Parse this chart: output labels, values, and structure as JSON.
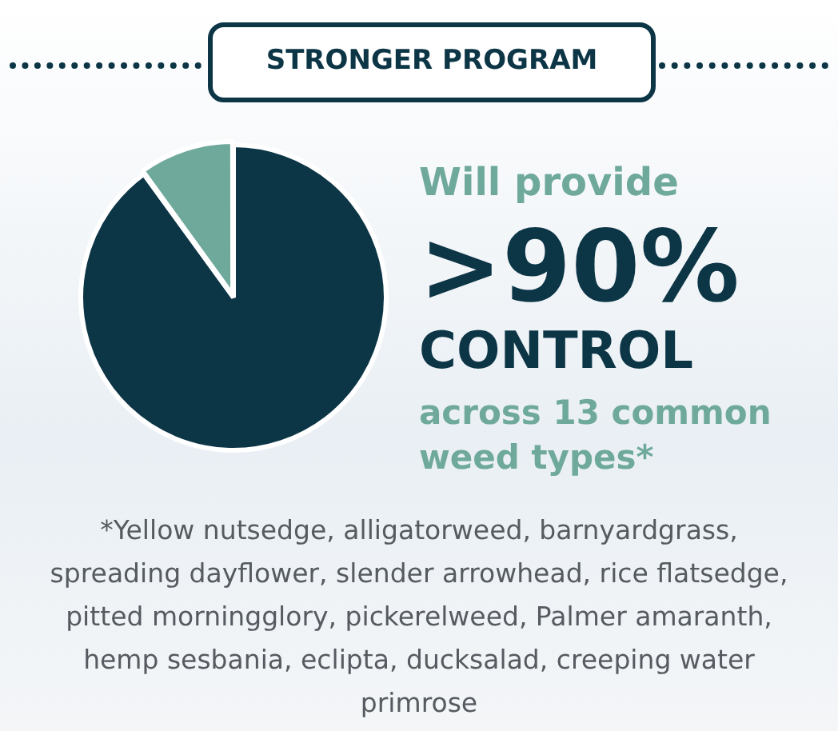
{
  "chart_data": {
    "type": "pie",
    "title": "STRONGER PROGRAM",
    "categories": [
      null,
      null
    ],
    "values": [
      90,
      10
    ],
    "colors": [
      "#0c3546",
      "#6ea99c"
    ],
    "legend": false,
    "annotations": [
      "Will provide",
      ">90%",
      "CONTROL",
      "across 13 common weed types*",
      "*Yellow nutsedge, alligatorweed, barnyardgrass, spreading dayflower, slender arrowhead, rice flatsedge, pitted morningglory, pickerelweed, Palmer amaranth, hemp sesbania, eclipta, ducksalad, creeping water primrose"
    ]
  }
}
